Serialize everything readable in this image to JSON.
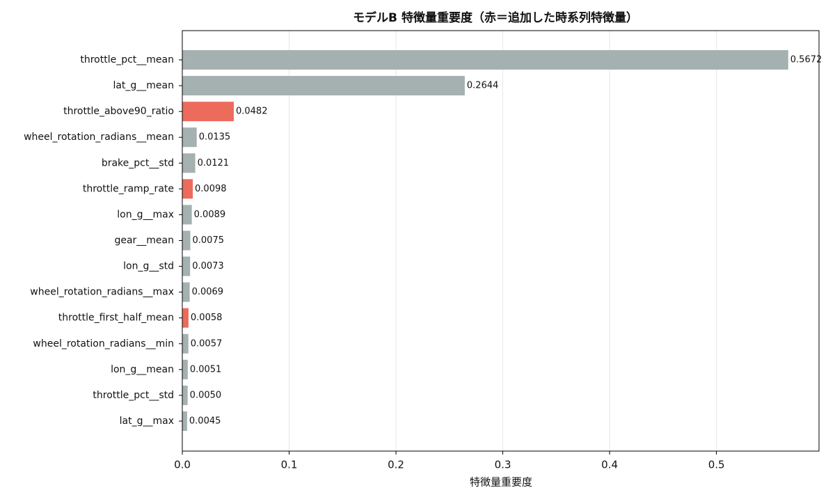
{
  "chart_data": {
    "type": "barh",
    "title": "モデルB 特徴量重要度（赤＝追加した時系列特徴量）",
    "x_label": "特徴量重要度",
    "categories": [
      "throttle_pct__mean",
      "lat_g__mean",
      "throttle_above90_ratio",
      "wheel_rotation_radians__mean",
      "brake_pct__std",
      "throttle_ramp_rate",
      "lon_g__max",
      "gear__mean",
      "lon_g__std",
      "wheel_rotation_radians__max",
      "throttle_first_half_mean",
      "wheel_rotation_radians__min",
      "lon_g__mean",
      "throttle_pct__std",
      "lat_g__max"
    ],
    "values": [
      0.5672,
      0.2644,
      0.0482,
      0.0135,
      0.0121,
      0.0098,
      0.0089,
      0.0075,
      0.0073,
      0.0069,
      0.0058,
      0.0057,
      0.0051,
      0.005,
      0.0045
    ],
    "value_labels": [
      "0.5672",
      "0.2644",
      "0.0482",
      "0.0135",
      "0.0121",
      "0.0098",
      "0.0089",
      "0.0075",
      "0.0073",
      "0.0069",
      "0.0058",
      "0.0057",
      "0.0051",
      "0.0050",
      "0.0045"
    ],
    "colors": [
      "#a5b1b0",
      "#a5b1b0",
      "#ec6b5d",
      "#a5b1b0",
      "#a5b1b0",
      "#ec6b5d",
      "#a5b1b0",
      "#a5b1b0",
      "#a5b1b0",
      "#a5b1b0",
      "#ec6b5d",
      "#a5b1b0",
      "#a5b1b0",
      "#a5b1b0",
      "#a5b1b0"
    ],
    "xlim": [
      0,
      0.596
    ],
    "xticks": [
      {
        "value": 0,
        "label": "0.0"
      },
      0.1,
      0.2,
      0.3,
      0.4,
      0.5
    ],
    "grid": true
  }
}
